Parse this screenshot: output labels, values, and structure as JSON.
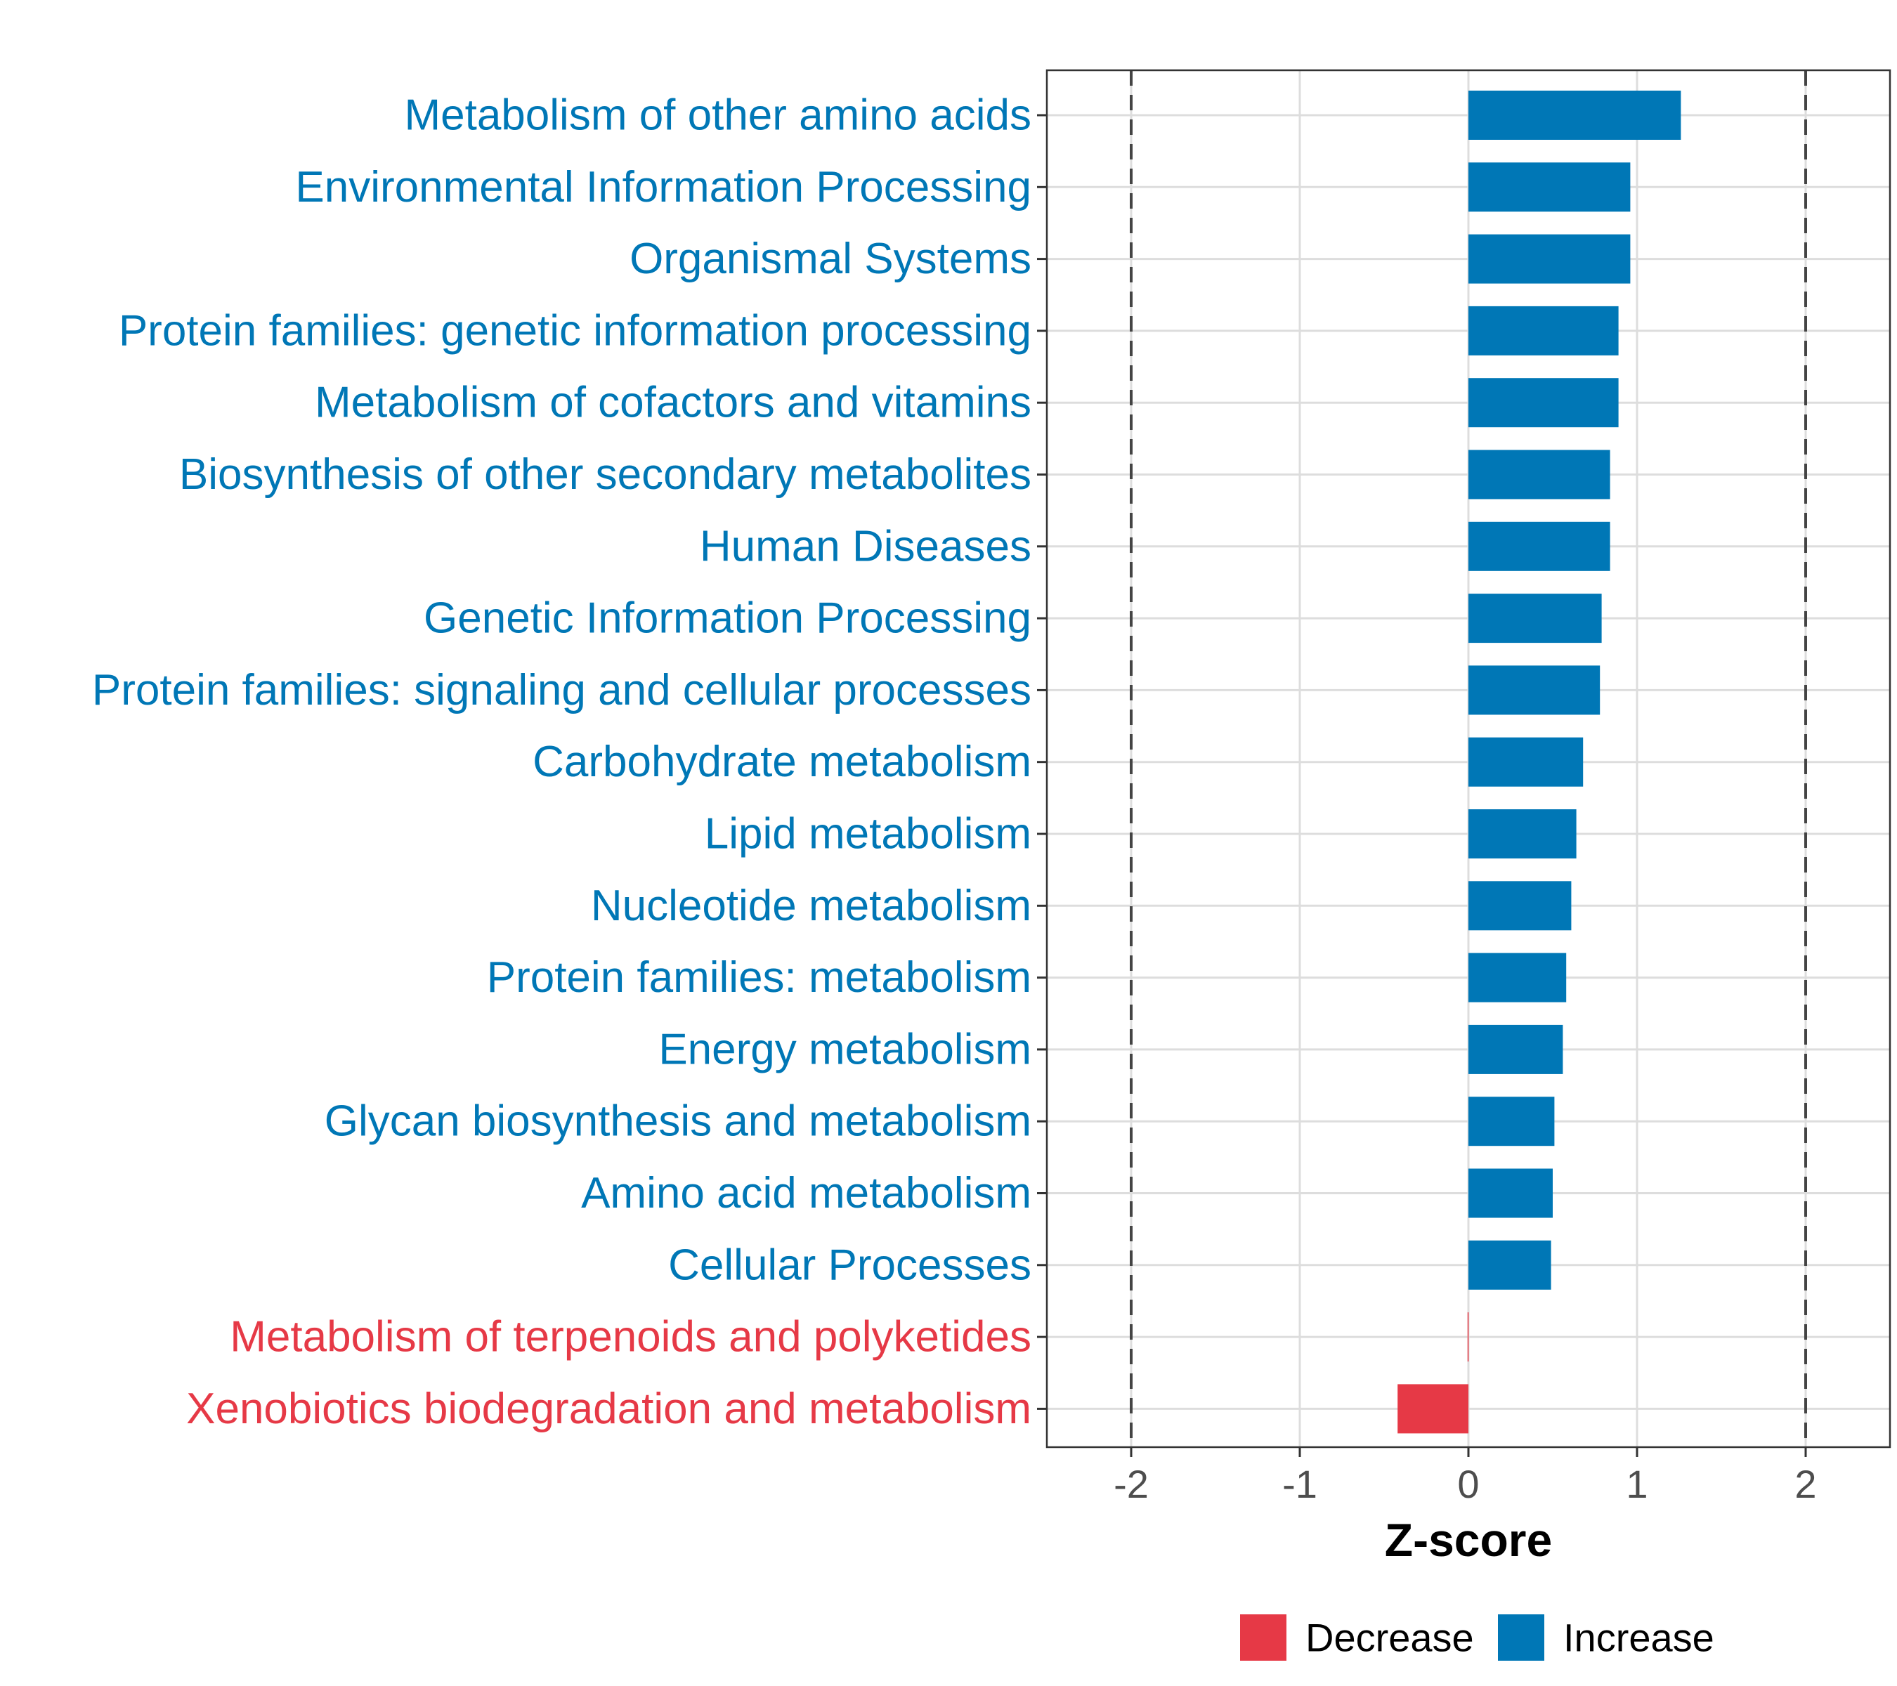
{
  "chart_data": {
    "type": "bar",
    "orientation": "horizontal",
    "title": "",
    "xlabel": "Z-score",
    "ylabel": "",
    "xlim": [
      -2.5,
      2.5
    ],
    "x_ticks": [
      "-2",
      "-1",
      "0",
      "1",
      "2"
    ],
    "x_tick_values": [
      -2,
      -1,
      0,
      1,
      2
    ],
    "reference_lines": [
      -2,
      2
    ],
    "grid": true,
    "legend_position": "bottom",
    "legend": [
      {
        "label": "Decrease",
        "color": "#E63946"
      },
      {
        "label": "Increase",
        "color": "#0077B6"
      }
    ],
    "categories": [
      "Metabolism of other amino acids",
      "Environmental Information Processing",
      "Organismal Systems",
      "Protein families: genetic information processing",
      "Metabolism of cofactors and vitamins",
      "Biosynthesis of other secondary metabolites",
      "Human Diseases",
      "Genetic Information Processing",
      "Protein families: signaling and cellular processes",
      "Carbohydrate metabolism",
      "Lipid metabolism",
      "Nucleotide metabolism",
      "Protein families: metabolism",
      "Energy metabolism",
      "Glycan biosynthesis and metabolism",
      "Amino acid metabolism",
      "Cellular Processes",
      "Metabolism of terpenoids and polyketides",
      "Xenobiotics biodegradation and metabolism"
    ],
    "values": [
      1.26,
      0.96,
      0.96,
      0.89,
      0.89,
      0.84,
      0.84,
      0.79,
      0.78,
      0.68,
      0.64,
      0.61,
      0.58,
      0.56,
      0.51,
      0.5,
      0.49,
      -0.005,
      -0.42
    ],
    "groups": [
      "Increase",
      "Increase",
      "Increase",
      "Increase",
      "Increase",
      "Increase",
      "Increase",
      "Increase",
      "Increase",
      "Increase",
      "Increase",
      "Increase",
      "Increase",
      "Increase",
      "Increase",
      "Increase",
      "Increase",
      "Decrease",
      "Decrease"
    ]
  }
}
